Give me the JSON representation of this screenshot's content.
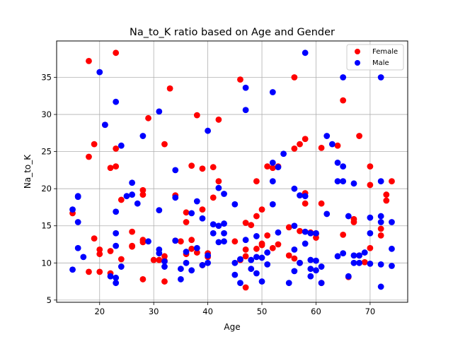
{
  "chart_data": {
    "type": "scatter",
    "title": "Na_to_K ratio based on Age and Gender",
    "xlabel": "Age",
    "ylabel": "Na_to_K",
    "xlim": [
      12.05,
      76.95
    ],
    "ylim": [
      4.7,
      39.9
    ],
    "xticks": [
      20,
      30,
      40,
      50,
      60,
      70
    ],
    "yticks": [
      5,
      10,
      15,
      20,
      25,
      30,
      35
    ],
    "grid": true,
    "legend_position": "top-right",
    "series": [
      {
        "name": "Female",
        "color": "#ff0000",
        "points": [
          [
            15,
            16.7
          ],
          [
            18,
            37.2
          ],
          [
            18,
            24.3
          ],
          [
            18,
            8.8
          ],
          [
            19,
            13.3
          ],
          [
            19,
            26.0
          ],
          [
            20,
            11.8
          ],
          [
            20,
            11.2
          ],
          [
            20,
            8.8
          ],
          [
            21,
            28.6
          ],
          [
            22,
            22.8
          ],
          [
            22,
            11.6
          ],
          [
            22,
            8.6
          ],
          [
            23,
            38.3
          ],
          [
            23,
            25.4
          ],
          [
            23,
            23.0
          ],
          [
            24,
            18.5
          ],
          [
            24,
            10.5
          ],
          [
            26,
            14.2
          ],
          [
            26,
            12.3
          ],
          [
            26,
            12.2
          ],
          [
            28,
            19.8
          ],
          [
            28,
            19.2
          ],
          [
            28,
            13.1
          ],
          [
            28,
            12.8
          ],
          [
            28,
            7.8
          ],
          [
            29,
            29.5
          ],
          [
            30,
            10.4
          ],
          [
            31,
            10.4
          ],
          [
            32,
            26.0
          ],
          [
            32,
            10.9
          ],
          [
            32,
            10.3
          ],
          [
            32,
            7.5
          ],
          [
            33,
            33.5
          ],
          [
            34,
            19.1
          ],
          [
            34,
            13.0
          ],
          [
            35,
            12.9
          ],
          [
            36,
            16.8
          ],
          [
            36,
            15.5
          ],
          [
            36,
            11.2
          ],
          [
            37,
            23.1
          ],
          [
            37,
            13.1
          ],
          [
            37,
            11.9
          ],
          [
            38,
            29.9
          ],
          [
            38,
            11.4
          ],
          [
            39,
            22.7
          ],
          [
            39,
            17.2
          ],
          [
            39,
            9.7
          ],
          [
            40,
            11.3
          ],
          [
            40,
            10.8
          ],
          [
            41,
            22.9
          ],
          [
            41,
            18.8
          ],
          [
            42,
            29.3
          ],
          [
            42,
            21.0
          ],
          [
            45,
            12.9
          ],
          [
            46,
            34.7
          ],
          [
            46,
            10.4
          ],
          [
            47,
            15.4
          ],
          [
            47,
            11.8
          ],
          [
            47,
            10.9
          ],
          [
            47,
            6.7
          ],
          [
            48,
            15.1
          ],
          [
            49,
            21.0
          ],
          [
            49,
            16.3
          ],
          [
            49,
            11.9
          ],
          [
            50,
            17.2
          ],
          [
            50,
            12.6
          ],
          [
            50,
            12.4
          ],
          [
            51,
            23.0
          ],
          [
            51,
            13.7
          ],
          [
            52,
            22.8
          ],
          [
            52,
            12.0
          ],
          [
            53,
            23.0
          ],
          [
            53,
            12.5
          ],
          [
            55,
            14.8
          ],
          [
            55,
            11.0
          ],
          [
            56,
            35.0
          ],
          [
            56,
            25.4
          ],
          [
            56,
            10.6
          ],
          [
            57,
            26.0
          ],
          [
            57,
            14.3
          ],
          [
            57,
            10.0
          ],
          [
            58,
            26.7
          ],
          [
            58,
            19.4
          ],
          [
            58,
            18.0
          ],
          [
            59,
            14.1
          ],
          [
            60,
            13.9
          ],
          [
            60,
            13.4
          ],
          [
            61,
            25.5
          ],
          [
            61,
            18.0
          ],
          [
            61,
            7.3
          ],
          [
            64,
            25.8
          ],
          [
            65,
            31.9
          ],
          [
            65,
            13.8
          ],
          [
            66,
            8.1
          ],
          [
            67,
            15.9
          ],
          [
            67,
            15.5
          ],
          [
            68,
            27.1
          ],
          [
            68,
            11.0
          ],
          [
            69,
            10.1
          ],
          [
            70,
            23.0
          ],
          [
            70,
            20.5
          ],
          [
            70,
            12.0
          ],
          [
            72,
            14.6
          ],
          [
            72,
            13.7
          ],
          [
            73,
            19.2
          ],
          [
            73,
            18.4
          ],
          [
            74,
            21.0
          ]
        ]
      },
      {
        "name": "Male",
        "color": "#0000ff",
        "points": [
          [
            15,
            17.2
          ],
          [
            15,
            9.1
          ],
          [
            16,
            19.0
          ],
          [
            16,
            18.9
          ],
          [
            16,
            15.5
          ],
          [
            16,
            12.0
          ],
          [
            17,
            10.8
          ],
          [
            20,
            35.7
          ],
          [
            21,
            28.6
          ],
          [
            22,
            8.2
          ],
          [
            23,
            31.7
          ],
          [
            23,
            16.9
          ],
          [
            23,
            14.0
          ],
          [
            23,
            12.3
          ],
          [
            23,
            8.0
          ],
          [
            23,
            7.3
          ],
          [
            24,
            25.8
          ],
          [
            24,
            9.5
          ],
          [
            25,
            19.0
          ],
          [
            26,
            20.8
          ],
          [
            26,
            19.2
          ],
          [
            27,
            18.0
          ],
          [
            28,
            27.1
          ],
          [
            29,
            12.9
          ],
          [
            31,
            30.4
          ],
          [
            31,
            17.1
          ],
          [
            31,
            11.8
          ],
          [
            31,
            11.3
          ],
          [
            32,
            10.2
          ],
          [
            32,
            9.5
          ],
          [
            34,
            22.5
          ],
          [
            34,
            18.8
          ],
          [
            34,
            13.0
          ],
          [
            35,
            9.2
          ],
          [
            35,
            7.8
          ],
          [
            36,
            11.5
          ],
          [
            36,
            10.0
          ],
          [
            37,
            16.7
          ],
          [
            37,
            9.0
          ],
          [
            38,
            18.3
          ],
          [
            38,
            12.0
          ],
          [
            39,
            16.0
          ],
          [
            39,
            9.7
          ],
          [
            40,
            27.8
          ],
          [
            40,
            11.0
          ],
          [
            40,
            10.0
          ],
          [
            41,
            15.2
          ],
          [
            41,
            14.0
          ],
          [
            42,
            20.1
          ],
          [
            42,
            15.0
          ],
          [
            42,
            12.8
          ],
          [
            43,
            19.3
          ],
          [
            43,
            15.3
          ],
          [
            43,
            14.0
          ],
          [
            43,
            12.9
          ],
          [
            45,
            17.9
          ],
          [
            45,
            10.0
          ],
          [
            45,
            8.4
          ],
          [
            46,
            10.5
          ],
          [
            46,
            7.3
          ],
          [
            47,
            33.6
          ],
          [
            47,
            30.6
          ],
          [
            47,
            13.1
          ],
          [
            48,
            10.4
          ],
          [
            48,
            9.2
          ],
          [
            49,
            13.6
          ],
          [
            49,
            10.8
          ],
          [
            49,
            8.6
          ],
          [
            50,
            10.7
          ],
          [
            50,
            7.5
          ],
          [
            51,
            11.4
          ],
          [
            51,
            9.8
          ],
          [
            52,
            33.0
          ],
          [
            52,
            23.5
          ],
          [
            52,
            21.0
          ],
          [
            52,
            17.9
          ],
          [
            53,
            22.9
          ],
          [
            53,
            14.1
          ],
          [
            54,
            24.7
          ],
          [
            55,
            7.3
          ],
          [
            56,
            20.0
          ],
          [
            56,
            15.0
          ],
          [
            56,
            11.8
          ],
          [
            56,
            8.9
          ],
          [
            57,
            19.1
          ],
          [
            57,
            10.0
          ],
          [
            58,
            38.3
          ],
          [
            58,
            19.0
          ],
          [
            58,
            14.2
          ],
          [
            58,
            12.6
          ],
          [
            59,
            14.0
          ],
          [
            59,
            10.4
          ],
          [
            59,
            9.2
          ],
          [
            59,
            8.2
          ],
          [
            60,
            14.0
          ],
          [
            60,
            10.3
          ],
          [
            60,
            9.0
          ],
          [
            61,
            9.5
          ],
          [
            61,
            7.3
          ],
          [
            62,
            27.1
          ],
          [
            62,
            16.6
          ],
          [
            63,
            26.0
          ],
          [
            64,
            23.5
          ],
          [
            64,
            21.0
          ],
          [
            64,
            10.9
          ],
          [
            65,
            35.0
          ],
          [
            65,
            23.0
          ],
          [
            65,
            21.0
          ],
          [
            65,
            11.3
          ],
          [
            66,
            16.3
          ],
          [
            66,
            8.2
          ],
          [
            67,
            20.7
          ],
          [
            67,
            11.0
          ],
          [
            67,
            10.0
          ],
          [
            68,
            11.0
          ],
          [
            68,
            10.0
          ],
          [
            69,
            11.4
          ],
          [
            70,
            16.1
          ],
          [
            70,
            14.0
          ],
          [
            70,
            9.9
          ],
          [
            72,
            35.0
          ],
          [
            72,
            21.0
          ],
          [
            72,
            16.3
          ],
          [
            72,
            15.5
          ],
          [
            72,
            9.8
          ],
          [
            72,
            6.8
          ],
          [
            74,
            15.5
          ],
          [
            74,
            11.9
          ],
          [
            74,
            9.6
          ]
        ]
      }
    ]
  }
}
